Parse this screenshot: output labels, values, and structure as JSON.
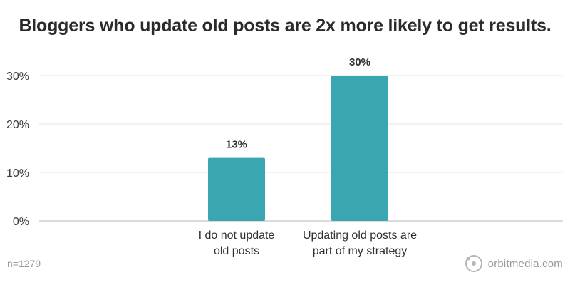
{
  "chart_data": {
    "type": "bar",
    "title": "Bloggers who update old posts are 2x more likely to get results.",
    "categories": [
      [
        "I do not update",
        "old posts"
      ],
      [
        "Updating old posts are",
        "part of my strategy"
      ]
    ],
    "values": [
      13,
      30
    ],
    "data_labels": [
      "13%",
      "30%"
    ],
    "y_ticks": [
      0,
      10,
      20,
      30
    ],
    "y_tick_labels": [
      "0%",
      "10%",
      "20%",
      "30%"
    ],
    "ylim": [
      0,
      30
    ],
    "grid": true,
    "bar_color": "#3aa6b1"
  },
  "footer": {
    "note": "n=1279",
    "brand": "orbitmedia.com",
    "brand_logo_icon": "orbit-circle-icon"
  }
}
